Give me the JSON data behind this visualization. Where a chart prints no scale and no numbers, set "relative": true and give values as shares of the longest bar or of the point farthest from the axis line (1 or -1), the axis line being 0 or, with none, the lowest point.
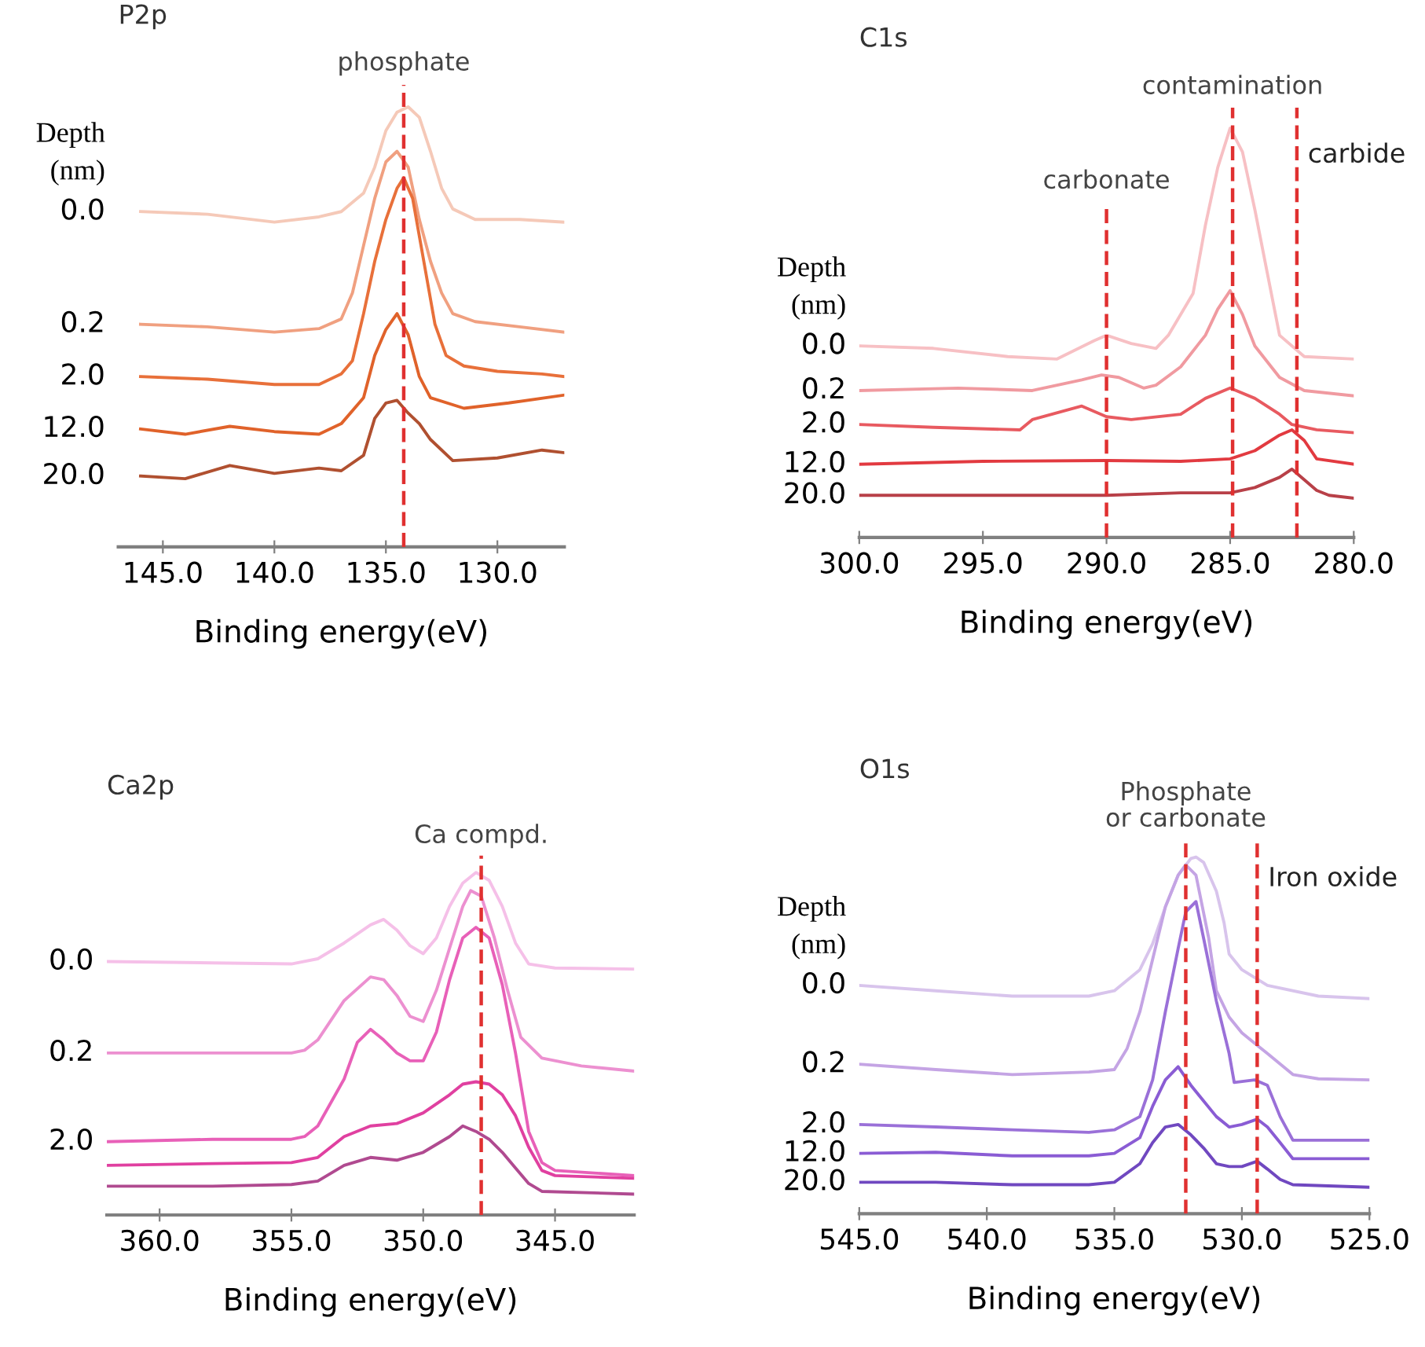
{
  "chart_data": [
    {
      "type": "line",
      "title": "P2p",
      "xlabel": "Binding energy(eV)",
      "legend_title": "Depth\n(nm)",
      "relative": true,
      "tick_labels": "x",
      "xlim": [
        147,
        127
      ],
      "xticks": [
        {
          "value": 145,
          "label": "145.0"
        },
        {
          "value": 140,
          "label": "140.0"
        },
        {
          "value": 135,
          "label": "135.0"
        },
        {
          "value": 130,
          "label": "130.0"
        }
      ],
      "ref_lines": [
        {
          "axis": "x",
          "value": 134.2,
          "label": "phosphate",
          "color": "#e03030",
          "line_style": "dashed"
        }
      ],
      "series": [
        {
          "name": "0.0",
          "color": "#f5c9b8",
          "x": [
            146,
            143,
            140,
            138,
            137,
            136,
            135.5,
            135,
            134.5,
            134,
            133.5,
            133,
            132.5,
            132,
            131,
            129,
            127
          ],
          "values": [
            0.762,
            0.756,
            0.738,
            0.75,
            0.762,
            0.804,
            0.863,
            0.946,
            0.988,
            1.0,
            0.976,
            0.899,
            0.815,
            0.768,
            0.744,
            0.744,
            0.738
          ]
        },
        {
          "name": "0.2",
          "color": "#f0a080",
          "x": [
            146,
            143,
            140,
            138,
            137,
            136.5,
            136,
            135.5,
            135,
            134.5,
            134,
            133.5,
            133,
            132.5,
            132,
            131,
            129,
            127
          ],
          "values": [
            0.506,
            0.5,
            0.488,
            0.496,
            0.518,
            0.577,
            0.685,
            0.792,
            0.875,
            0.899,
            0.863,
            0.744,
            0.649,
            0.577,
            0.53,
            0.512,
            0.5,
            0.488
          ]
        },
        {
          "name": "2.0",
          "color": "#e8703a",
          "x": [
            146,
            143,
            140,
            138,
            137,
            136.5,
            136,
            135.5,
            135,
            134.5,
            134.2,
            133.8,
            133.3,
            132.8,
            132.3,
            131.5,
            130,
            128,
            127
          ],
          "values": [
            0.387,
            0.381,
            0.369,
            0.369,
            0.393,
            0.423,
            0.53,
            0.649,
            0.744,
            0.815,
            0.839,
            0.792,
            0.649,
            0.506,
            0.435,
            0.411,
            0.399,
            0.393,
            0.387
          ]
        },
        {
          "name": "12.0",
          "color": "#e0622a",
          "x": [
            146,
            144,
            142,
            140,
            138,
            137,
            136,
            135.5,
            135,
            134.5,
            134,
            133.5,
            133,
            131.5,
            129.5,
            127
          ],
          "values": [
            0.268,
            0.256,
            0.274,
            0.262,
            0.256,
            0.28,
            0.339,
            0.435,
            0.494,
            0.53,
            0.482,
            0.387,
            0.339,
            0.315,
            0.327,
            0.345
          ]
        },
        {
          "name": "20.0",
          "color": "#b05030",
          "x": [
            146,
            144,
            142,
            140,
            138,
            137,
            136,
            135.5,
            135,
            134.5,
            134,
            133.5,
            133,
            132,
            130,
            128,
            127
          ],
          "values": [
            0.161,
            0.155,
            0.185,
            0.167,
            0.179,
            0.173,
            0.208,
            0.292,
            0.327,
            0.333,
            0.304,
            0.28,
            0.244,
            0.196,
            0.202,
            0.22,
            0.214
          ]
        }
      ]
    },
    {
      "type": "line",
      "title": "C1s",
      "xlabel": "Binding energy(eV)",
      "legend_title": "Depth\n(nm)",
      "relative": true,
      "tick_labels": "x",
      "xlim": [
        300,
        280
      ],
      "xticks": [
        {
          "value": 300,
          "label": "300.0"
        },
        {
          "value": 295,
          "label": "295.0"
        },
        {
          "value": 290,
          "label": "290.0"
        },
        {
          "value": 285,
          "label": "285.0"
        },
        {
          "value": 280,
          "label": "280.0"
        }
      ],
      "ref_lines": [
        {
          "axis": "x",
          "value": 290,
          "label": "carbonate",
          "color": "#e03030",
          "line_style": "dashed"
        },
        {
          "axis": "x",
          "value": 284.9,
          "label": "contamination",
          "color": "#e03030",
          "line_style": "dashed"
        },
        {
          "axis": "x",
          "value": 282.3,
          "label": "carbide",
          "color": "#e03030",
          "line_style": "dashed"
        }
      ],
      "series": [
        {
          "name": "0.0",
          "color": "#f7c0c4",
          "x": [
            300,
            297,
            294,
            292,
            290.5,
            290,
            289,
            288,
            287.5,
            286.5,
            286,
            285.5,
            285,
            284.5,
            284,
            283.5,
            283,
            282,
            280
          ],
          "values": [
            0.468,
            0.462,
            0.442,
            0.436,
            0.481,
            0.494,
            0.474,
            0.462,
            0.494,
            0.596,
            0.763,
            0.904,
            1.0,
            0.942,
            0.801,
            0.647,
            0.494,
            0.442,
            0.436
          ]
        },
        {
          "name": "0.2",
          "color": "#f09aa0",
          "x": [
            300,
            296,
            293,
            291,
            290.2,
            289.5,
            288.5,
            288,
            287,
            286,
            285.5,
            285,
            284.5,
            284,
            283,
            282,
            280
          ],
          "values": [
            0.359,
            0.365,
            0.359,
            0.385,
            0.397,
            0.391,
            0.365,
            0.372,
            0.417,
            0.494,
            0.558,
            0.603,
            0.545,
            0.468,
            0.391,
            0.359,
            0.346
          ]
        },
        {
          "name": "2.0",
          "color": "#e85a60",
          "x": [
            300,
            297,
            293.5,
            293,
            291,
            290,
            289,
            287,
            286,
            285,
            284,
            283,
            282.5,
            281.5,
            280
          ],
          "values": [
            0.276,
            0.269,
            0.263,
            0.288,
            0.321,
            0.295,
            0.288,
            0.301,
            0.34,
            0.365,
            0.34,
            0.301,
            0.276,
            0.263,
            0.256
          ]
        },
        {
          "name": "12.0",
          "color": "#e23a40",
          "x": [
            300,
            295,
            290,
            287,
            285,
            284,
            283,
            282.5,
            282,
            281.5,
            280
          ],
          "values": [
            0.179,
            0.186,
            0.188,
            0.186,
            0.192,
            0.212,
            0.25,
            0.263,
            0.237,
            0.192,
            0.179
          ]
        },
        {
          "name": "20.0",
          "color": "#b84048",
          "x": [
            300,
            295,
            290,
            287,
            285,
            284,
            283,
            282.5,
            282,
            281.5,
            281,
            280
          ],
          "values": [
            0.103,
            0.103,
            0.103,
            0.109,
            0.109,
            0.122,
            0.147,
            0.167,
            0.141,
            0.115,
            0.103,
            0.096
          ]
        }
      ]
    },
    {
      "type": "line",
      "title": "Ca2p",
      "xlabel": "Binding energy(eV)",
      "relative": true,
      "tick_labels": "x",
      "xlim": [
        362,
        342
      ],
      "xticks": [
        {
          "value": 360,
          "label": "360.0"
        },
        {
          "value": 355,
          "label": "355.0"
        },
        {
          "value": 350,
          "label": "350.0"
        },
        {
          "value": 345,
          "label": "345.0"
        }
      ],
      "ref_lines": [
        {
          "axis": "x",
          "value": 347.8,
          "label": "Ca compd.",
          "color": "#e03030",
          "line_style": "dashed"
        }
      ],
      "series": [
        {
          "name": "0.0",
          "color": "#f5c0e8",
          "x": [
            362,
            358,
            355,
            354,
            353,
            352,
            351.5,
            351,
            350.5,
            350,
            349.5,
            349,
            348.5,
            348,
            347.5,
            347,
            346.5,
            346,
            345,
            342
          ],
          "values": [
            0.74,
            0.736,
            0.733,
            0.748,
            0.794,
            0.847,
            0.863,
            0.832,
            0.786,
            0.763,
            0.809,
            0.901,
            0.969,
            1.0,
            0.977,
            0.901,
            0.794,
            0.733,
            0.721,
            0.718
          ]
        },
        {
          "name": "0.2",
          "color": "#ec90d0",
          "x": [
            362,
            358,
            355,
            354.5,
            354,
            353,
            352,
            351.5,
            351,
            350.5,
            350,
            349.5,
            349,
            348.5,
            348.2,
            347.8,
            347.3,
            346.8,
            346.3,
            345.5,
            344,
            342
          ],
          "values": [
            0.473,
            0.473,
            0.473,
            0.481,
            0.511,
            0.626,
            0.695,
            0.687,
            0.641,
            0.58,
            0.565,
            0.656,
            0.779,
            0.901,
            0.947,
            0.931,
            0.809,
            0.656,
            0.519,
            0.458,
            0.435,
            0.42
          ]
        },
        {
          "name": "2.0",
          "color": "#e860b8",
          "x": [
            362,
            358,
            355,
            354.5,
            354,
            353,
            352.5,
            352,
            351.5,
            351,
            350.5,
            350,
            349.5,
            349,
            348.5,
            348,
            347.5,
            347,
            346.5,
            346,
            345.5,
            345,
            342
          ],
          "values": [
            0.214,
            0.221,
            0.221,
            0.229,
            0.26,
            0.397,
            0.504,
            0.542,
            0.511,
            0.473,
            0.45,
            0.45,
            0.534,
            0.687,
            0.809,
            0.84,
            0.809,
            0.672,
            0.473,
            0.244,
            0.153,
            0.13,
            0.115
          ]
        },
        {
          "color": "#e040a0",
          "x": [
            362,
            358,
            355,
            354,
            353,
            352,
            351,
            350,
            349,
            348.5,
            348,
            347.5,
            347,
            346.5,
            346,
            345.5,
            345,
            342
          ],
          "values": [
            0.145,
            0.15,
            0.153,
            0.168,
            0.229,
            0.26,
            0.267,
            0.298,
            0.351,
            0.382,
            0.389,
            0.382,
            0.351,
            0.29,
            0.198,
            0.13,
            0.115,
            0.107
          ]
        },
        {
          "color": "#b04a90",
          "x": [
            362,
            358,
            355,
            354,
            353,
            352,
            351,
            350,
            349,
            348.5,
            348,
            347.5,
            347,
            346.5,
            346,
            345.5,
            342
          ],
          "values": [
            0.084,
            0.084,
            0.089,
            0.099,
            0.145,
            0.168,
            0.16,
            0.183,
            0.229,
            0.26,
            0.244,
            0.221,
            0.183,
            0.137,
            0.092,
            0.069,
            0.061
          ]
        }
      ]
    },
    {
      "type": "line",
      "title": "O1s",
      "xlabel": "Binding energy(eV)",
      "legend_title": "Depth\n(nm)",
      "relative": true,
      "tick_labels": "x",
      "xlim": [
        545,
        525
      ],
      "xticks": [
        {
          "value": 545,
          "label": "545.0"
        },
        {
          "value": 540,
          "label": "540.0"
        },
        {
          "value": 535,
          "label": "535.0"
        },
        {
          "value": 530,
          "label": "530.0"
        },
        {
          "value": 525,
          "label": "525.0"
        }
      ],
      "ref_lines": [
        {
          "axis": "x",
          "value": 532.2,
          "label": "Phosphate\nor carbonate",
          "color": "#e03030",
          "line_style": "dashed"
        },
        {
          "axis": "x",
          "value": 529.4,
          "label": "Iron oxide",
          "color": "#e03030",
          "line_style": "dashed"
        }
      ],
      "series": [
        {
          "name": "0.0",
          "color": "#d8c4ec",
          "x": [
            545,
            542,
            539,
            536,
            535,
            534,
            533.5,
            533,
            532.5,
            532,
            531.8,
            531.5,
            531,
            530.7,
            530.5,
            530,
            529,
            527,
            525
          ],
          "values": [
            0.64,
            0.625,
            0.61,
            0.61,
            0.625,
            0.684,
            0.757,
            0.86,
            0.949,
            0.996,
            1.0,
            0.985,
            0.904,
            0.816,
            0.728,
            0.684,
            0.64,
            0.61,
            0.603
          ]
        },
        {
          "name": "0.2",
          "color": "#c4a4e4",
          "x": [
            545,
            542,
            539,
            536,
            535,
            534.5,
            534,
            533.5,
            533,
            532.5,
            532.2,
            531.8,
            531.3,
            531,
            530.5,
            530,
            529.5,
            529,
            528,
            527,
            525
          ],
          "values": [
            0.419,
            0.404,
            0.39,
            0.397,
            0.404,
            0.463,
            0.566,
            0.713,
            0.86,
            0.949,
            0.978,
            0.949,
            0.772,
            0.625,
            0.551,
            0.507,
            0.478,
            0.449,
            0.39,
            0.378,
            0.375
          ]
        },
        {
          "name": "2.0",
          "color": "#9a70d8",
          "x": [
            545,
            542,
            539,
            536,
            535,
            534,
            533.5,
            533,
            532.5,
            532.2,
            531.8,
            531.5,
            531,
            530.5,
            530.3,
            529.5,
            529,
            528.5,
            528,
            525
          ],
          "values": [
            0.25,
            0.243,
            0.235,
            0.228,
            0.235,
            0.272,
            0.375,
            0.566,
            0.743,
            0.846,
            0.875,
            0.772,
            0.596,
            0.449,
            0.368,
            0.375,
            0.36,
            0.272,
            0.206,
            0.206
          ]
        },
        {
          "name": "12.0",
          "color": "#8a5cd4",
          "x": [
            545,
            542,
            539,
            536,
            535,
            534,
            533.5,
            533,
            532.5,
            532,
            531.5,
            531,
            530.5,
            530,
            529.4,
            529,
            528.5,
            528,
            525
          ],
          "values": [
            0.169,
            0.172,
            0.162,
            0.162,
            0.169,
            0.213,
            0.301,
            0.375,
            0.412,
            0.36,
            0.316,
            0.272,
            0.243,
            0.25,
            0.265,
            0.243,
            0.199,
            0.154,
            0.154
          ]
        },
        {
          "name": "20.0",
          "color": "#7048c0",
          "x": [
            545,
            542,
            539,
            536,
            535,
            534,
            533.5,
            533,
            532.5,
            532,
            531.5,
            531,
            530.5,
            530,
            529.4,
            529,
            528.5,
            528,
            525
          ],
          "values": [
            0.088,
            0.088,
            0.081,
            0.081,
            0.088,
            0.14,
            0.199,
            0.243,
            0.25,
            0.221,
            0.184,
            0.14,
            0.132,
            0.132,
            0.147,
            0.125,
            0.096,
            0.081,
            0.074
          ]
        }
      ]
    }
  ]
}
